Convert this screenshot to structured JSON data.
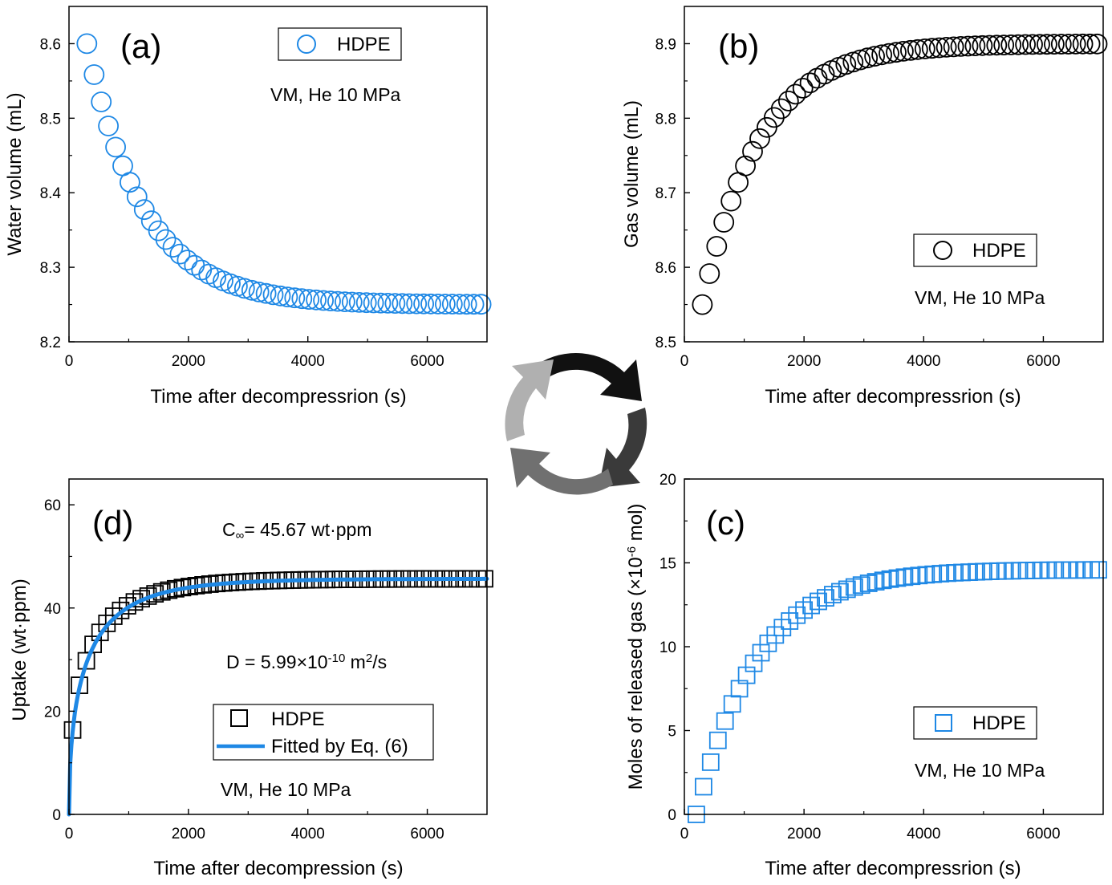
{
  "colors": {
    "blue": "#1e88e5",
    "black": "#000000",
    "fit": "#1e88e5"
  },
  "center_icon": "cycle-arrows-icon",
  "chart_data": [
    {
      "id": "a",
      "type": "scatter",
      "panel_label": "(a)",
      "xlabel": "Time after decompressrion (s)",
      "ylabel": "Water volume (mL)",
      "xlim": [
        0,
        7000
      ],
      "ylim": [
        8.2,
        8.65
      ],
      "xticks": [
        0,
        2000,
        4000,
        6000
      ],
      "yticks": [
        8.2,
        8.3,
        8.4,
        8.5,
        8.6
      ],
      "marker": "circle",
      "color": "#1e88e5",
      "annotation": "VM, He 10 MPa",
      "legend_position": "top-right",
      "series": [
        {
          "name": "HDPE",
          "curve": {
            "form": "decay",
            "start": 8.6,
            "end": 8.25,
            "tau": 950,
            "x_start": 300,
            "x_end": 7000,
            "step": 120
          }
        }
      ]
    },
    {
      "id": "b",
      "type": "scatter",
      "panel_label": "(b)",
      "xlabel": "Time after decompressrion (s)",
      "ylabel": "Gas volume (mL)",
      "xlim": [
        0,
        7000
      ],
      "ylim": [
        8.5,
        8.95
      ],
      "xticks": [
        0,
        2000,
        4000,
        6000
      ],
      "yticks": [
        8.5,
        8.6,
        8.7,
        8.8,
        8.9
      ],
      "marker": "circle",
      "color": "#000000",
      "annotation": "VM, He 10 MPa",
      "legend_position": "center-right",
      "series": [
        {
          "name": "HDPE",
          "curve": {
            "form": "rise",
            "start": 8.55,
            "end": 8.9,
            "tau": 950,
            "x_start": 300,
            "x_end": 7000,
            "step": 120
          }
        }
      ]
    },
    {
      "id": "d",
      "type": "scatter",
      "panel_label": "(d)",
      "xlabel": "Time after decompression (s)",
      "ylabel": "Uptake (wt·ppm)",
      "xlim": [
        0,
        7000
      ],
      "ylim": [
        0,
        65
      ],
      "xticks": [
        0,
        2000,
        4000,
        6000
      ],
      "yticks": [
        0,
        20,
        40,
        60
      ],
      "marker": "square",
      "color": "#000000",
      "annotation": "VM, He 10 MPa",
      "c_inf": {
        "prefix": "C",
        "sub": "∞",
        "rest": "= 45.67 wt·ppm"
      },
      "diffusivity": {
        "prefix": "D = 5.99×10",
        "exp": "-10",
        "mid": " m",
        "exp2": "2",
        "suffix": "/s"
      },
      "legend_position": "bottom-center",
      "series": [
        {
          "name": "HDPE",
          "curve": {
            "form": "sqrt-rise",
            "end": 45.67,
            "tau": 900,
            "x_start": 60,
            "x_end": 7000,
            "step": 115
          }
        },
        {
          "name": "Fitted by Eq. (6)",
          "style": "line",
          "color": "#1e88e5",
          "curve": {
            "form": "sqrt-rise",
            "end": 45.67,
            "tau": 950,
            "x_start": 0,
            "x_end": 7000
          }
        }
      ]
    },
    {
      "id": "c",
      "type": "scatter",
      "panel_label": "(c)",
      "xlabel": "Time after decompressrion (s)",
      "ylabel": "Moles of released gas (×10",
      "ylabel_exp": "-6",
      "ylabel_suffix": " mol)",
      "xlim": [
        0,
        7000
      ],
      "ylim": [
        0,
        20
      ],
      "xticks": [
        0,
        2000,
        4000,
        6000
      ],
      "yticks": [
        0,
        5,
        10,
        15,
        20
      ],
      "marker": "square",
      "color": "#1e88e5",
      "annotation": "VM, He 10 MPa",
      "legend_position": "bottom-right",
      "series": [
        {
          "name": "HDPE",
          "curve": {
            "form": "rise",
            "start": 0,
            "end": 14.6,
            "tau": 1000,
            "x_start": 200,
            "x_end": 7000,
            "step": 120
          }
        }
      ]
    }
  ]
}
